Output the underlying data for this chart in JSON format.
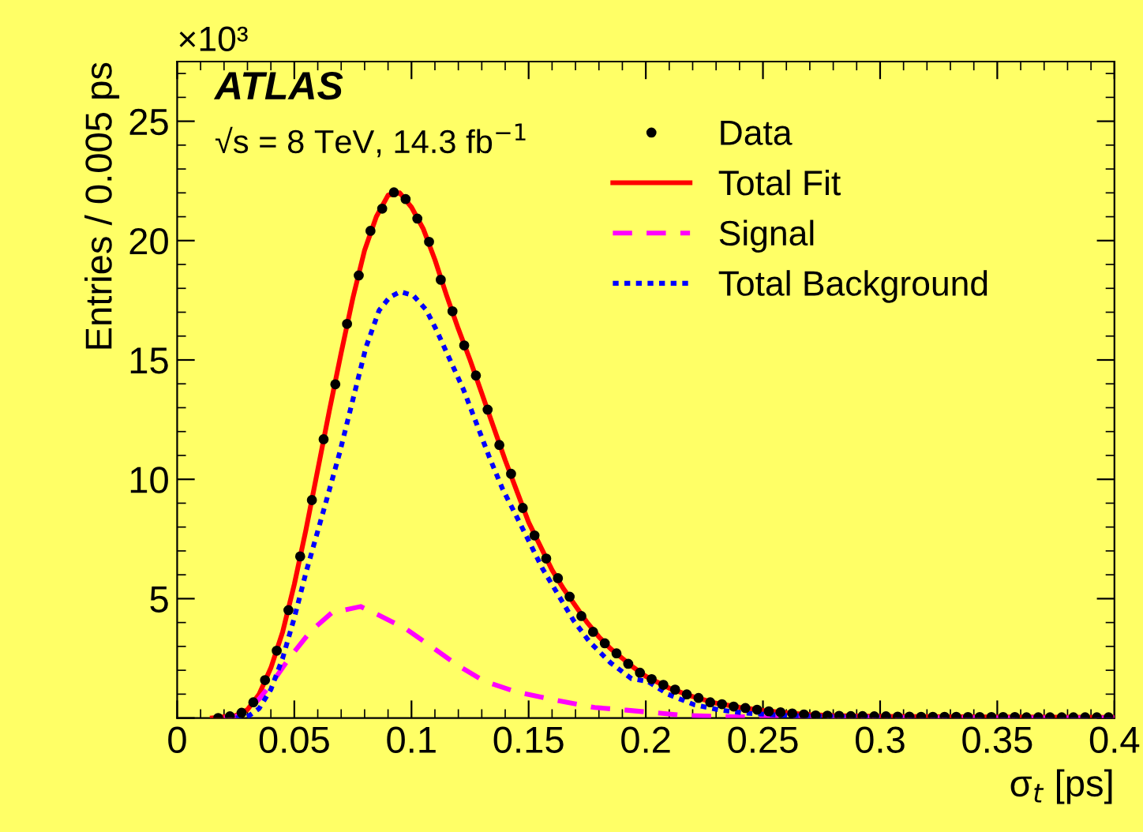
{
  "chart_data": {
    "type": "line",
    "xlabel": "σ$_{t}$ [ps]",
    "ylabel": "Entries / 0.005 ps",
    "annotations": [
      "ATLAS",
      "√s = 8 TeV, 14.3 fb$^{−1}$",
      "×10³"
    ],
    "xlim": [
      0,
      0.4
    ],
    "xticks": [
      0,
      0.05,
      0.1,
      0.15,
      0.2,
      0.25,
      0.3,
      0.35,
      0.4
    ],
    "ylim": [
      0,
      27.5
    ],
    "yticks": [
      {
        "value": 0,
        "label": null
      },
      5,
      10,
      15,
      20,
      25
    ],
    "grid": false,
    "legend": "top right",
    "series": [
      {
        "name": "Data",
        "type": "scatter",
        "marker": "circle",
        "color": "#000000",
        "x": [
          0.0175,
          0.0225,
          0.0275,
          0.0325,
          0.0375,
          0.0425,
          0.0475,
          0.0525,
          0.0575,
          0.0625,
          0.0675,
          0.0725,
          0.0775,
          0.0825,
          0.0875,
          0.0925,
          0.0975,
          0.1025,
          0.1075,
          0.1125,
          0.1175,
          0.1225,
          0.1275,
          0.1325,
          0.1375,
          0.1425,
          0.1475,
          0.1525,
          0.1575,
          0.1625,
          0.1675,
          0.1725,
          0.1775,
          0.1825,
          0.1875,
          0.1925,
          0.1975,
          0.2025,
          0.2075,
          0.2125,
          0.2175,
          0.2225,
          0.2275,
          0.2325,
          0.2375,
          0.2425,
          0.2475,
          0.2525,
          0.2575,
          0.2625,
          0.2675,
          0.2725,
          0.2775,
          0.2825,
          0.2875,
          0.2925,
          0.2975,
          0.3025,
          0.3075,
          0.3125,
          0.3175,
          0.3225,
          0.3275,
          0.3325,
          0.3375,
          0.3425,
          0.3475,
          0.3525,
          0.3575,
          0.3625,
          0.3675,
          0.3725,
          0.3775,
          0.3825,
          0.3875,
          0.3925,
          0.3975
        ],
        "values": [
          0,
          0.07,
          0.22,
          0.66,
          1.59,
          2.82,
          4.52,
          6.77,
          9.13,
          11.68,
          13.98,
          16.51,
          18.54,
          20.41,
          21.34,
          22.02,
          21.74,
          20.92,
          19.95,
          18.36,
          17.04,
          15.61,
          14.35,
          12.92,
          11.44,
          10.23,
          8.8,
          7.65,
          6.68,
          5.86,
          5.08,
          4.27,
          3.61,
          3.13,
          2.71,
          2.27,
          1.9,
          1.63,
          1.39,
          1.19,
          0.99,
          0.84,
          0.66,
          0.58,
          0.48,
          0.42,
          0.35,
          0.28,
          0.24,
          0.19,
          0.15,
          0.11,
          0.1,
          0.09,
          0.08,
          0.08,
          0.07,
          0.07,
          0.06,
          0.06,
          0.05,
          0.05,
          0.05,
          0.05,
          0.04,
          0.04,
          0.04,
          0.04,
          0.04,
          0.03,
          0.03,
          0.03,
          0.03,
          0.03,
          0.03,
          0.03,
          0.03
        ]
      },
      {
        "name": "Total Fit",
        "line_style": "solid",
        "color": "#ff0000",
        "x": [
          0.015,
          0.025,
          0.03,
          0.035,
          0.04,
          0.045,
          0.05,
          0.055,
          0.06,
          0.065,
          0.07,
          0.075,
          0.08,
          0.085,
          0.09,
          0.095,
          0.1,
          0.105,
          0.11,
          0.115,
          0.12,
          0.125,
          0.13,
          0.135,
          0.14,
          0.145,
          0.15,
          0.155,
          0.16,
          0.165,
          0.17,
          0.175,
          0.18,
          0.185,
          0.19,
          0.195,
          0.2,
          0.21,
          0.22,
          0.23,
          0.24,
          0.25,
          0.26,
          0.27,
          0.28,
          0.3,
          0.35,
          0.4
        ],
        "values": [
          0,
          0.1,
          0.35,
          1.0,
          2.1,
          3.6,
          5.6,
          7.9,
          10.4,
          12.9,
          15.3,
          17.6,
          19.6,
          21.0,
          21.9,
          22.0,
          21.4,
          20.5,
          19.2,
          17.7,
          16.3,
          15.0,
          13.6,
          12.2,
          10.8,
          9.5,
          8.2,
          7.2,
          6.2,
          5.4,
          4.7,
          4.0,
          3.4,
          2.9,
          2.5,
          2.1,
          1.75,
          1.25,
          0.9,
          0.62,
          0.45,
          0.32,
          0.22,
          0.14,
          0.1,
          0.07,
          0.04,
          0.03
        ]
      },
      {
        "name": "Signal",
        "line_style": "dashed",
        "color": "#ff00ff",
        "x": [
          0.02,
          0.025,
          0.03,
          0.035,
          0.0402,
          0.048,
          0.057,
          0.066,
          0.0783,
          0.0862,
          0.0974,
          0.1086,
          0.1199,
          0.1311,
          0.1446,
          0.1603,
          0.1782,
          0.1917,
          0.2164,
          0.2388,
          0.3,
          0.4
        ],
        "values": [
          0,
          0.05,
          0.3,
          0.8,
          1.43,
          2.53,
          3.64,
          4.41,
          4.67,
          4.3,
          3.75,
          2.98,
          2.2,
          1.54,
          1.1,
          0.77,
          0.44,
          0.33,
          0.11,
          0.05,
          0.01,
          0
        ]
      },
      {
        "name": "Total Background",
        "line_style": "dotted",
        "color": "#0000ff",
        "x": [
          0.025,
          0.03,
          0.035,
          0.04,
          0.045,
          0.05,
          0.055,
          0.0638,
          0.0694,
          0.075,
          0.0806,
          0.0862,
          0.0907,
          0.0952,
          0.1008,
          0.1064,
          0.1109,
          0.1165,
          0.1221,
          0.1277,
          0.1333,
          0.1389,
          0.1446,
          0.1502,
          0.1558,
          0.1625,
          0.1692,
          0.176,
          0.185,
          0.1939,
          0.2007,
          0.2096,
          0.2209,
          0.232,
          0.243,
          0.261,
          0.3,
          0.4
        ],
        "values": [
          0,
          0.05,
          0.4,
          1.2,
          2.5,
          4.2,
          6.1,
          9.15,
          11.13,
          13.34,
          15.54,
          17.08,
          17.63,
          17.86,
          17.7,
          17.08,
          16.2,
          14.99,
          13.78,
          12.35,
          10.91,
          9.59,
          8.49,
          7.39,
          6.28,
          5.18,
          4.08,
          3.19,
          2.31,
          1.65,
          1.54,
          0.99,
          0.55,
          0.33,
          0.2,
          0.1,
          0.03,
          0
        ]
      }
    ]
  }
}
